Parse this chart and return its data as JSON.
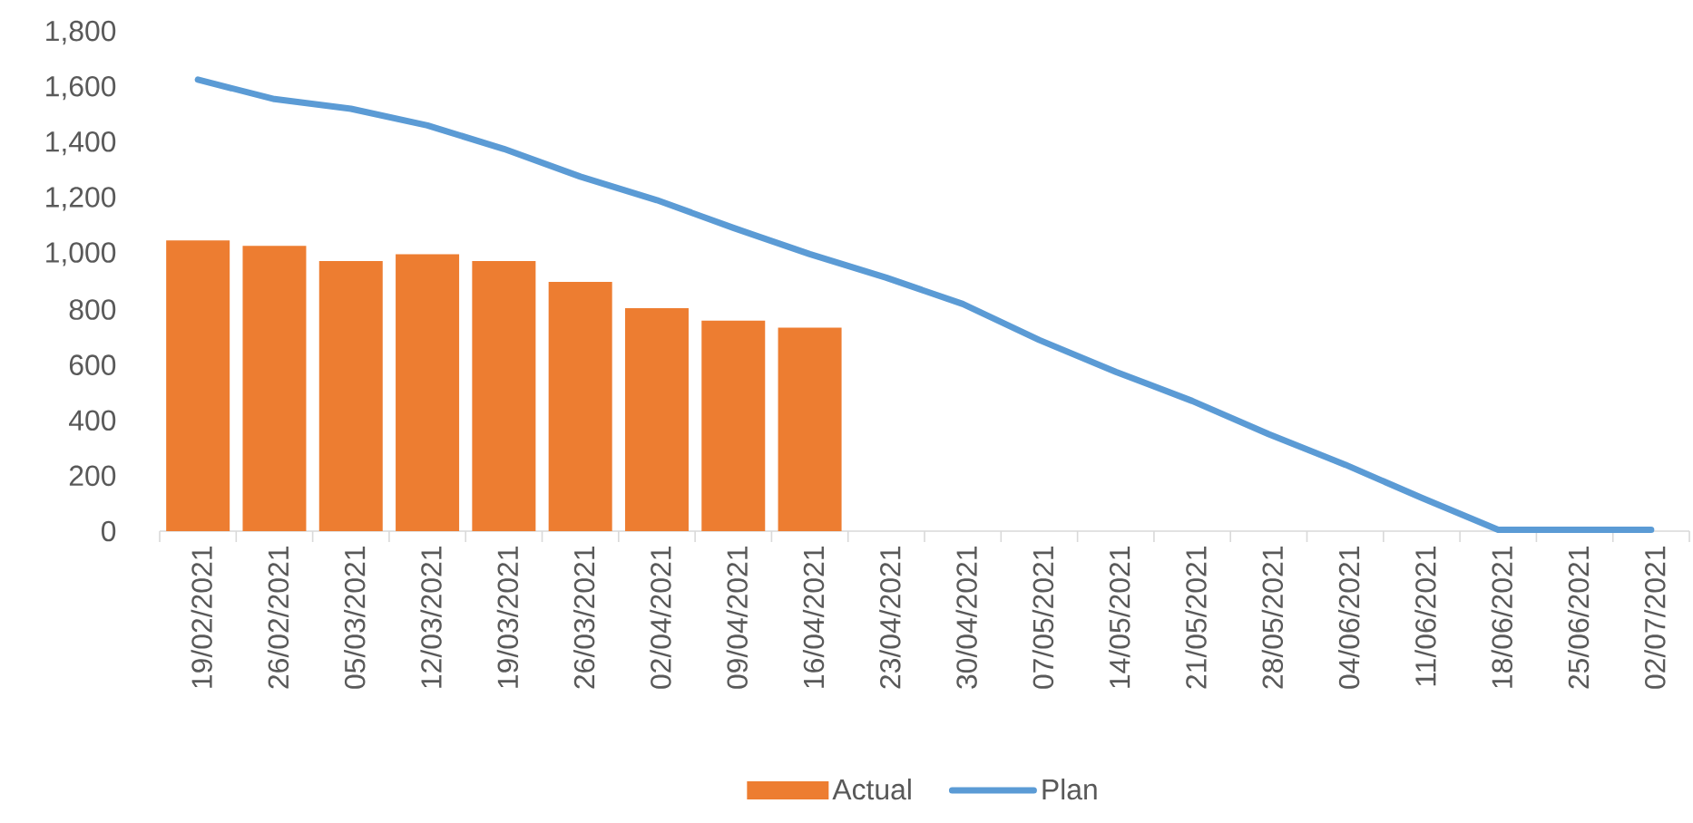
{
  "chart_data": {
    "type": "bar",
    "categories": [
      "19/02/2021",
      "26/02/2021",
      "05/03/2021",
      "12/03/2021",
      "19/03/2021",
      "26/03/2021",
      "02/04/2021",
      "09/04/2021",
      "16/04/2021",
      "23/04/2021",
      "30/04/2021",
      "07/05/2021",
      "14/05/2021",
      "21/05/2021",
      "28/05/2021",
      "04/06/2021",
      "11/06/2021",
      "18/06/2021",
      "25/06/2021",
      "02/07/2021"
    ],
    "series": [
      {
        "name": "Actual",
        "color": "#ed7d31",
        "values": [
          1050,
          1030,
          975,
          1000,
          975,
          900,
          805,
          760,
          735,
          null,
          null,
          null,
          null,
          null,
          null,
          null,
          null,
          null,
          null,
          null
        ]
      },
      {
        "name": "Plan",
        "type": "line",
        "color": "#5b9bd5",
        "line_style": "solid",
        "values": [
          1630,
          1560,
          1525,
          1465,
          1380,
          1280,
          1195,
          1095,
          1000,
          915,
          820,
          690,
          575,
          470,
          350,
          240,
          120,
          5,
          5,
          5
        ]
      }
    ],
    "ylim": [
      0,
      1800
    ],
    "yticks": [
      0,
      200,
      400,
      600,
      800,
      {
        "value": 1000,
        "label": "1,000"
      },
      {
        "value": 1200,
        "label": "1,200"
      },
      {
        "value": 1400,
        "label": "1,400"
      },
      {
        "value": 1600,
        "label": "1,600"
      },
      {
        "value": 1800,
        "label": "1,800"
      }
    ],
    "legend": "bottom"
  }
}
